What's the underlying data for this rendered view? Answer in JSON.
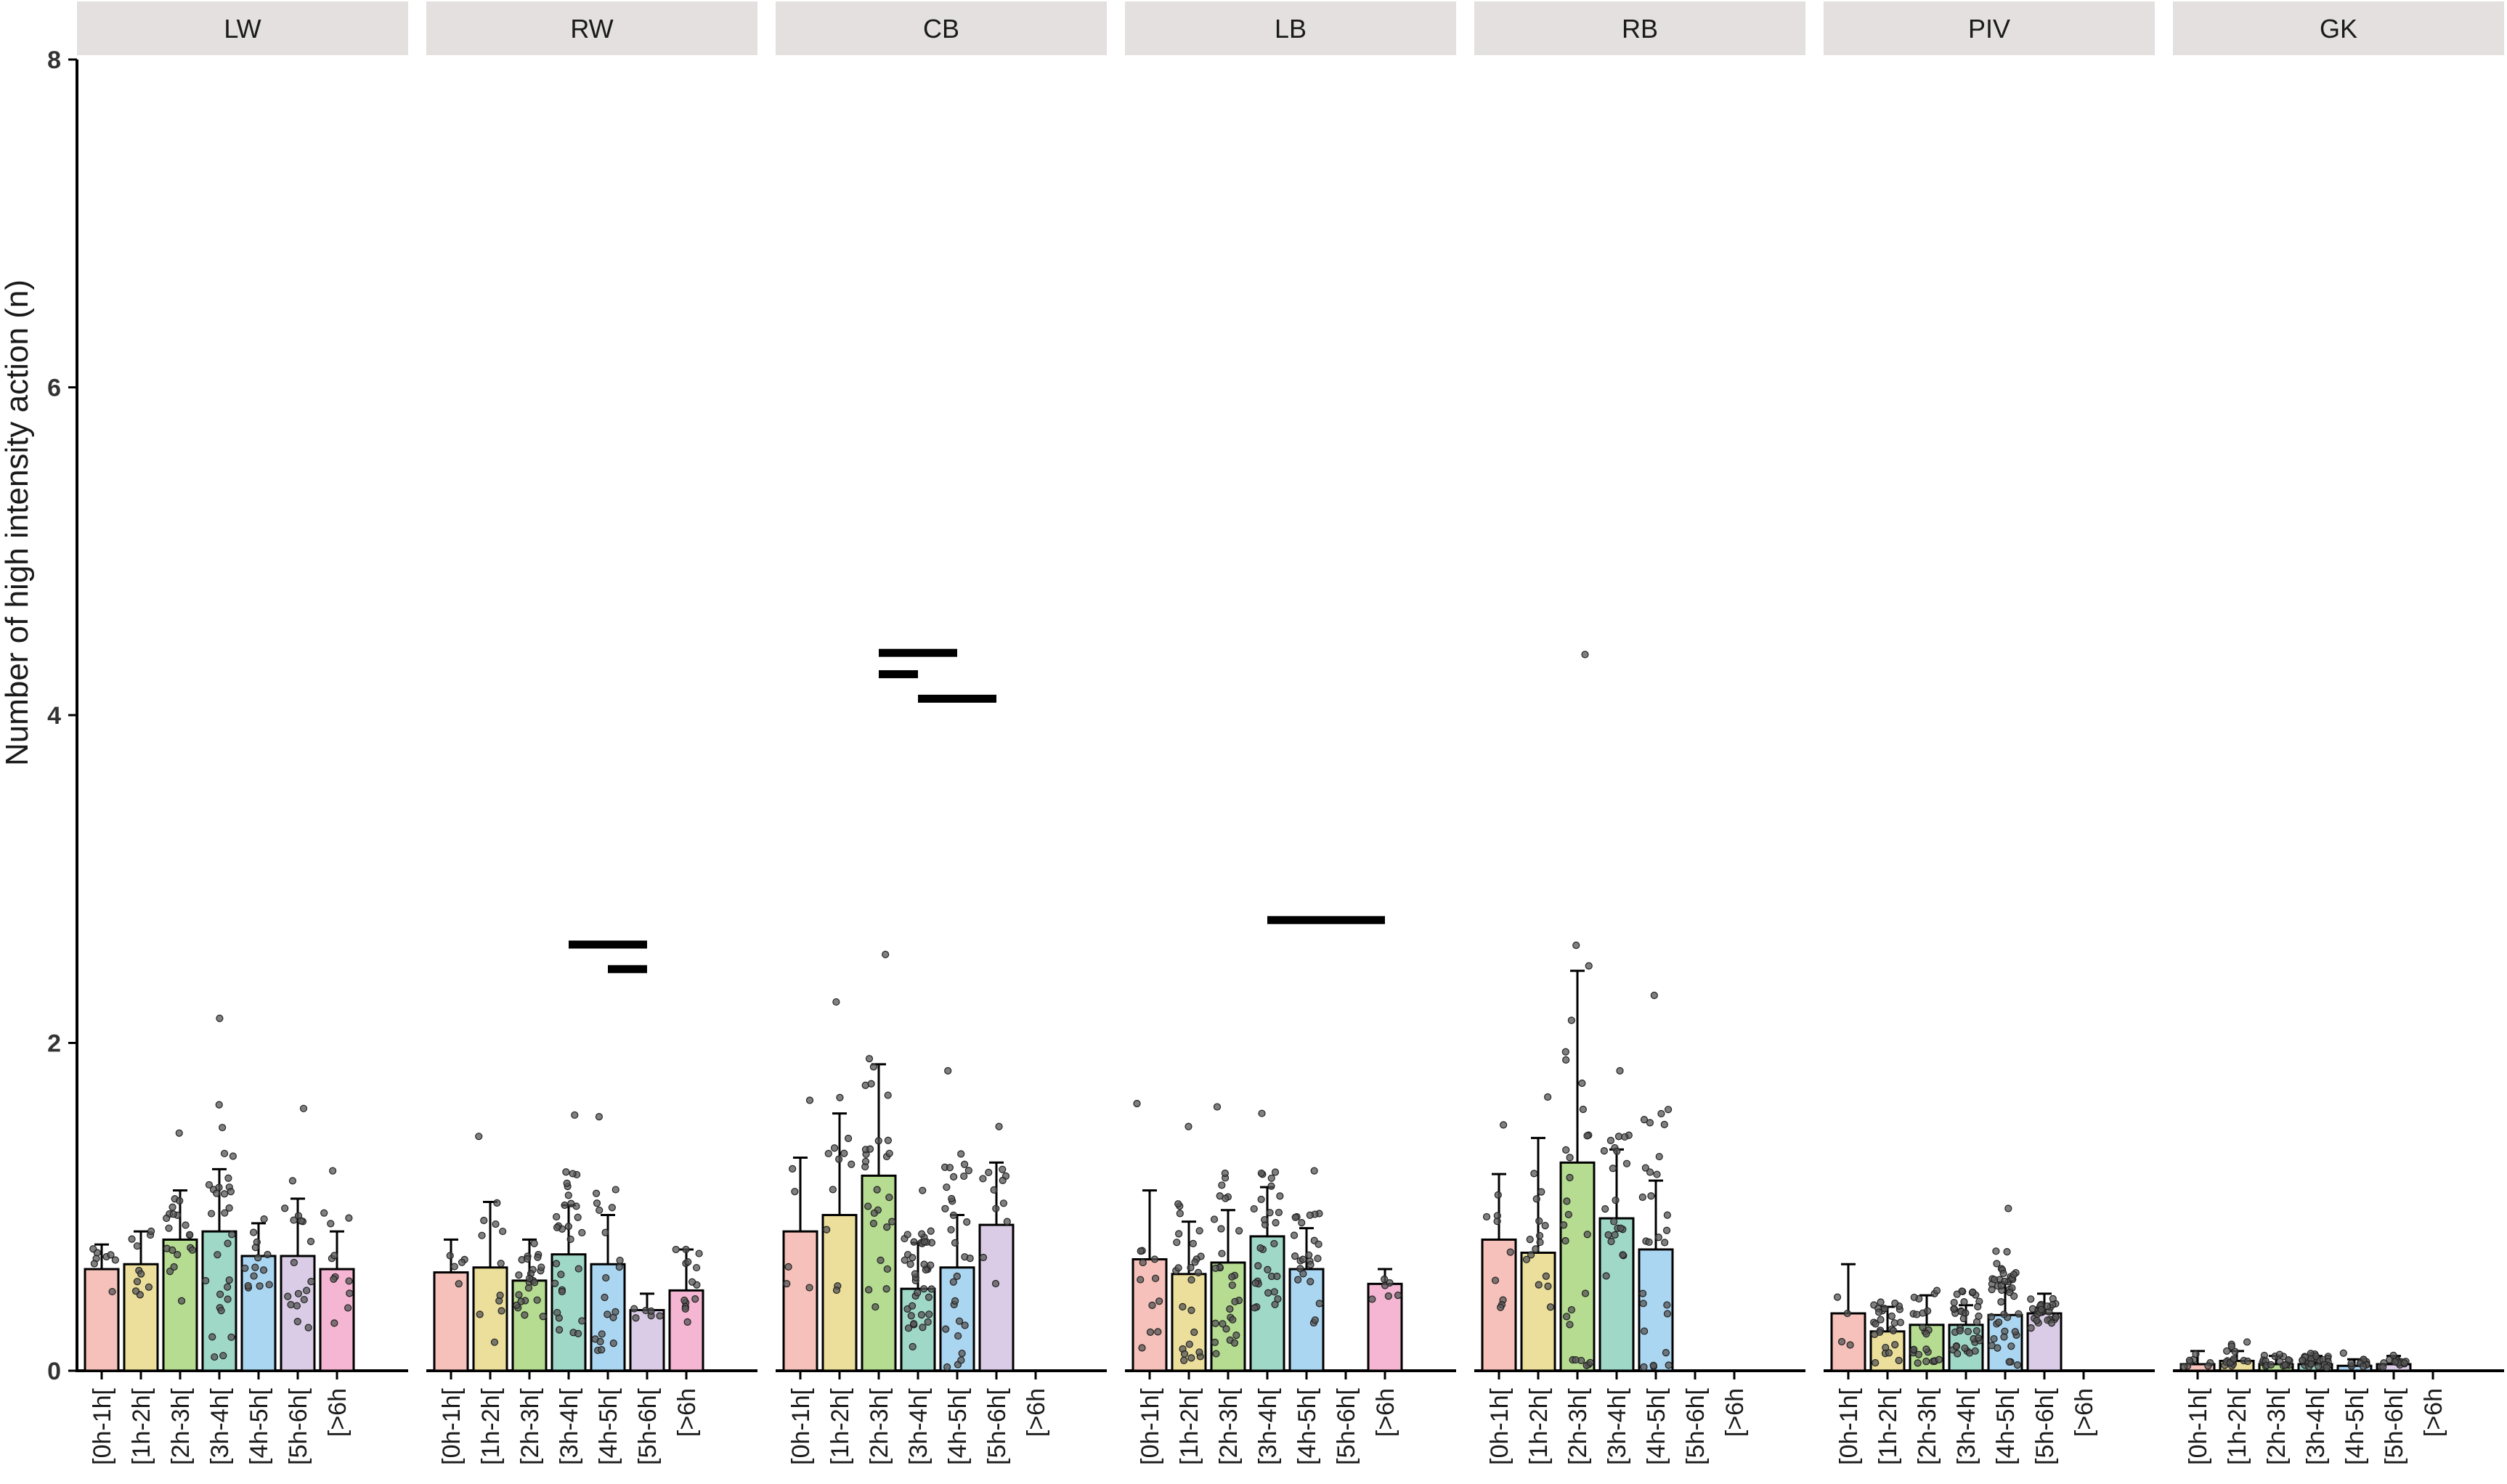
{
  "chart_data": {
    "type": "bar",
    "title": "",
    "ylabel": "Number of high intensity action (n)",
    "xlabel": "",
    "ylim": [
      0,
      8
    ],
    "yticks": [
      0,
      2,
      4,
      6,
      8
    ],
    "categories": [
      "[0h-1h[",
      "[1h-2h[",
      "[2h-3h[",
      "[3h-4h[",
      "[4h-5h[",
      "[5h-6h[",
      "[>6h"
    ],
    "colors": [
      "#F4B6AE",
      "#E9D98A",
      "#A8D67E",
      "#8FD1BE",
      "#9CCFEF",
      "#D3C3E2",
      "#F3A9CB"
    ],
    "panels": [
      {
        "name": "LW",
        "means": [
          0.62,
          0.65,
          0.8,
          0.85,
          0.7,
          0.7,
          0.62
        ],
        "sd": [
          0.15,
          0.2,
          0.3,
          0.38,
          0.2,
          0.35,
          0.23
        ],
        "spread": [
          0.35,
          0.4,
          0.65,
          1.3,
          0.4,
          0.9,
          0.6
        ],
        "n": [
          8,
          10,
          20,
          30,
          14,
          18,
          12
        ],
        "sig_bars": []
      },
      {
        "name": "RW",
        "means": [
          0.6,
          0.63,
          0.55,
          0.71,
          0.65,
          0.37,
          0.49
        ],
        "sd": [
          0.2,
          0.4,
          0.25,
          0.3,
          0.3,
          0.1,
          0.25
        ],
        "spread": [
          0.3,
          0.8,
          0.4,
          0.85,
          0.9,
          0.2,
          0.45
        ],
        "n": [
          5,
          12,
          24,
          30,
          20,
          6,
          14
        ],
        "sig_bars": [
          {
            "from": 3,
            "to": 5,
            "y": 2.6
          },
          {
            "from": 4,
            "to": 5,
            "y": 2.45
          }
        ]
      },
      {
        "name": "CB",
        "means": [
          0.85,
          0.95,
          1.19,
          0.5,
          0.63,
          0.89,
          null
        ],
        "sd": [
          0.45,
          0.62,
          0.68,
          0.28,
          0.32,
          0.38,
          null
        ],
        "spread": [
          0.8,
          1.3,
          1.35,
          0.6,
          1.2,
          0.6,
          0
        ],
        "n": [
          6,
          12,
          28,
          40,
          30,
          12,
          0
        ],
        "sig_bars": [
          {
            "from": 2,
            "to": 4,
            "y": 4.38
          },
          {
            "from": 2,
            "to": 3,
            "y": 4.25
          },
          {
            "from": 3,
            "to": 5,
            "y": 4.1
          }
        ]
      },
      {
        "name": "LB",
        "means": [
          0.68,
          0.59,
          0.66,
          0.82,
          0.62,
          null,
          0.53
        ],
        "sd": [
          0.42,
          0.32,
          0.32,
          0.3,
          0.25,
          null,
          0.09
        ],
        "spread": [
          0.95,
          0.9,
          0.95,
          0.75,
          0.6,
          0,
          0.2
        ],
        "n": [
          12,
          26,
          30,
          30,
          24,
          0,
          6
        ],
        "sig_bars": [
          {
            "from": 3,
            "to": 6,
            "y": 2.75
          }
        ]
      },
      {
        "name": "RB",
        "means": [
          0.8,
          0.72,
          1.27,
          0.93,
          0.74,
          null,
          null
        ],
        "sd": [
          0.4,
          0.7,
          1.17,
          0.42,
          0.42,
          null,
          null
        ],
        "spread": [
          0.7,
          0.95,
          3.1,
          0.9,
          1.55,
          0,
          0
        ],
        "n": [
          10,
          16,
          28,
          22,
          28,
          0,
          0
        ],
        "sig_bars": []
      },
      {
        "name": "PIV",
        "means": [
          0.35,
          0.24,
          0.28,
          0.28,
          0.34,
          0.35,
          null
        ],
        "sd": [
          0.3,
          0.15,
          0.18,
          0.12,
          0.2,
          0.12,
          null
        ],
        "spread": [
          0.45,
          0.35,
          0.4,
          0.35,
          0.65,
          0.15,
          0
        ],
        "n": [
          4,
          26,
          24,
          36,
          44,
          28,
          0
        ],
        "sig_bars": []
      },
      {
        "name": "GK",
        "means": [
          0.04,
          0.06,
          0.04,
          0.04,
          0.03,
          0.04,
          null
        ],
        "sd": [
          0.08,
          0.06,
          0.05,
          0.05,
          0.04,
          0.05,
          null
        ],
        "spread": [
          0.16,
          0.2,
          0.1,
          0.12,
          0.14,
          0.1,
          0
        ],
        "n": [
          8,
          16,
          18,
          28,
          12,
          16,
          0
        ],
        "sig_bars": []
      }
    ]
  }
}
